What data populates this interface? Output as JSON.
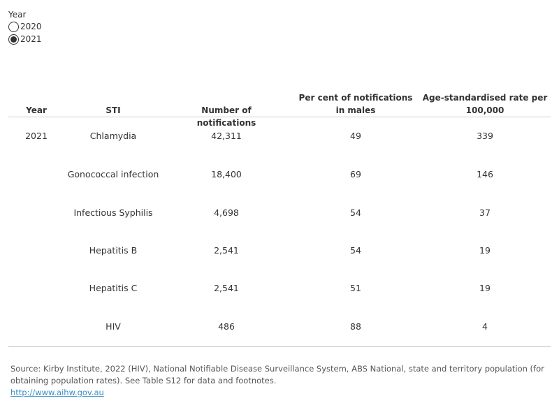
{
  "filter": {
    "title": "Year",
    "options": [
      {
        "label": "2020",
        "selected": false
      },
      {
        "label": "2021",
        "selected": true
      }
    ]
  },
  "table": {
    "headers": [
      "Year",
      "STI",
      "Number of notifications",
      "Per cent of notifications in males",
      "Age-standardised rate per 100,000"
    ],
    "rows": [
      [
        "2021",
        "Chlamydia",
        "42,311",
        "49",
        "339"
      ],
      [
        "",
        "Gonococcal infection",
        "18,400",
        "69",
        "146"
      ],
      [
        "",
        "Infectious Syphilis",
        "4,698",
        "54",
        "37"
      ],
      [
        "",
        "Hepatitis B",
        "2,541",
        "54",
        "19"
      ],
      [
        "",
        "Hepatitis C",
        "2,541",
        "51",
        "19"
      ],
      [
        "",
        "HIV",
        "486",
        "88",
        "4"
      ]
    ]
  },
  "source": {
    "text": "Source: Kirby Institute, 2022 (HIV), National Notifiable Disease Surveillance System, ABS National, state and territory population (for obtaining population rates). See Table S12 for data and footnotes.",
    "link": "http://www.aihw.gov.au"
  }
}
